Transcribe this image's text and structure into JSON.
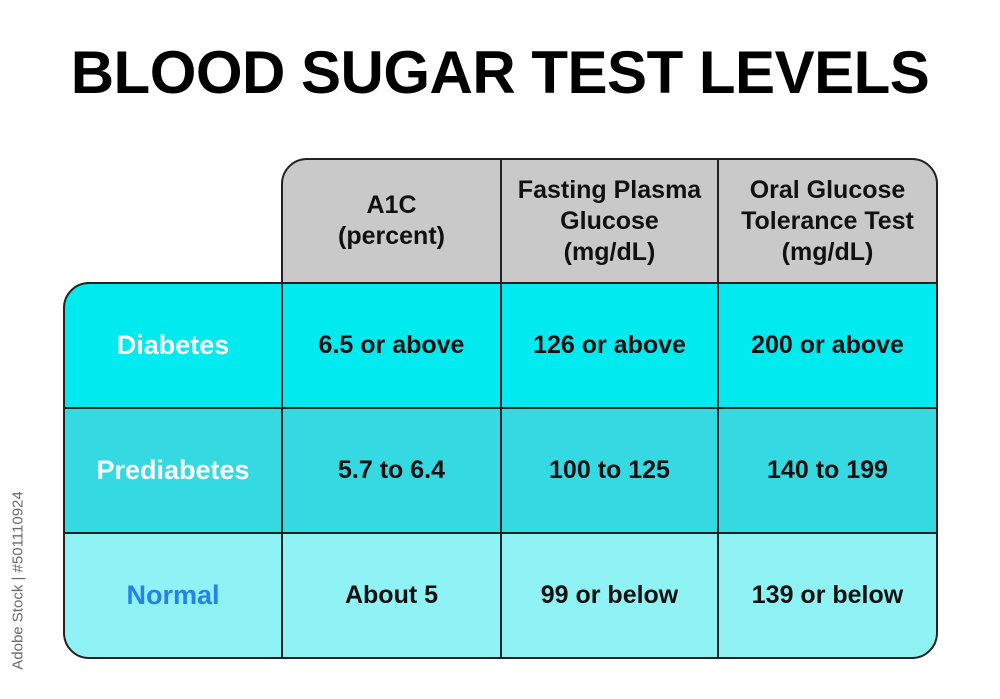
{
  "title": "BLOOD SUGAR TEST LEVELS",
  "headers": [
    {
      "lines": [
        "A1C",
        "(percent)"
      ]
    },
    {
      "lines": [
        "Fasting Plasma",
        "Glucose",
        "(mg/dL)"
      ]
    },
    {
      "lines": [
        "Oral Glucose",
        "Tolerance Test",
        "(mg/dL)"
      ]
    }
  ],
  "rows": [
    {
      "label": "Diabetes",
      "values": [
        "6.5 or above",
        "126 or above",
        "200 or above"
      ]
    },
    {
      "label": "Prediabetes",
      "values": [
        "5.7 to 6.4",
        "100 to 125",
        "140 to 199"
      ]
    },
    {
      "label": "Normal",
      "values": [
        "About 5",
        "99 or below",
        "139 or below"
      ]
    }
  ],
  "colors": {
    "header_bg": "#c9c9c9",
    "diabetes_bg": "#00eaf0",
    "prediabetes_bg": "#34d9e2",
    "normal_bg": "#8ff3f5",
    "normal_label": "#2b7fe8"
  },
  "watermark": "Adobe Stock | #501110924"
}
